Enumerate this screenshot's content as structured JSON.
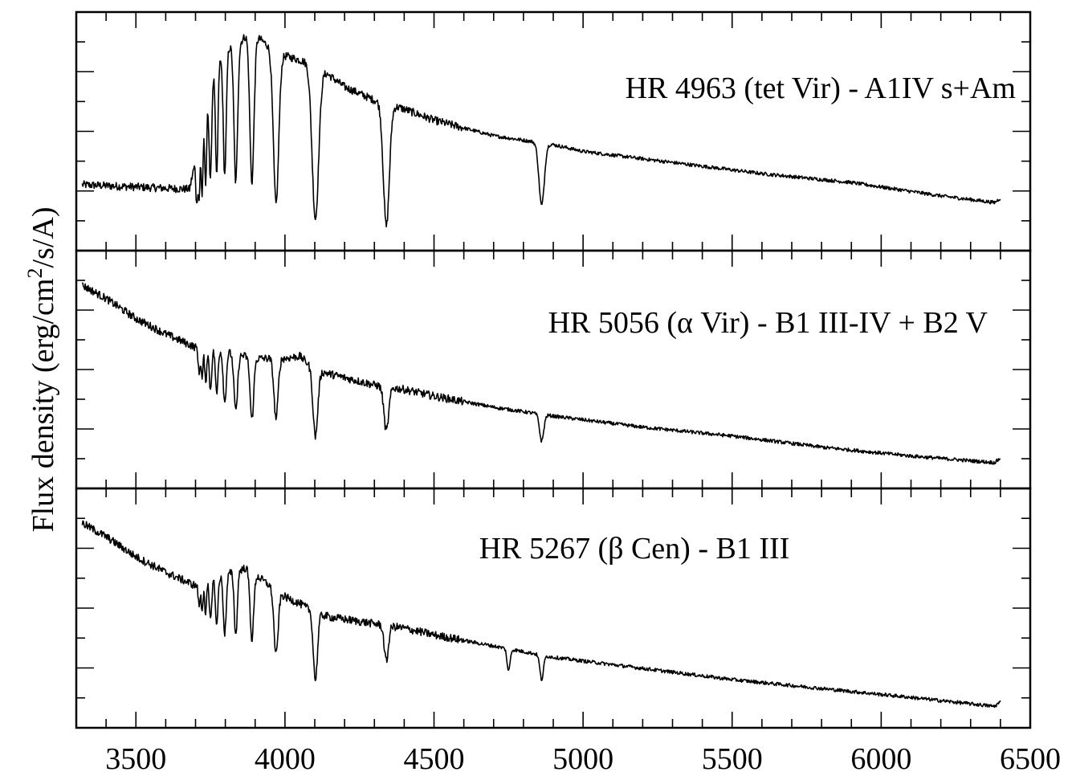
{
  "chart_data": {
    "type": "line",
    "xlabel": "",
    "ylabel": "Flux density (erg/cm² /s/A)",
    "ylabel_parts": {
      "pre": "Flux density (erg/cm",
      "sup": "2",
      "post": "/s/A)"
    },
    "xlim": [
      3300,
      6500
    ],
    "x_ticks": [
      3500,
      4000,
      4500,
      5000,
      5500,
      6000,
      6500
    ],
    "x_tick_labels": [
      "3500",
      "4000",
      "4500",
      "5000",
      "5500",
      "6000",
      "6500"
    ],
    "grid": false,
    "panels": [
      {
        "label": "HR 4963 (tet Vir) - A1IV s+Am",
        "ylim": [
          0,
          1
        ],
        "continuum": [
          [
            3320,
            0.26
          ],
          [
            3500,
            0.25
          ],
          [
            3680,
            0.24
          ],
          [
            3700,
            0.37
          ],
          [
            3760,
            0.76
          ],
          [
            3800,
            0.87
          ],
          [
            3850,
            0.9
          ],
          [
            3880,
            0.95
          ],
          [
            3950,
            0.88
          ],
          [
            4000,
            0.84
          ],
          [
            4050,
            0.82
          ],
          [
            4100,
            0.8
          ],
          [
            4200,
            0.7
          ],
          [
            4300,
            0.64
          ],
          [
            4400,
            0.6
          ],
          [
            4500,
            0.55
          ],
          [
            4700,
            0.48
          ],
          [
            4900,
            0.44
          ],
          [
            5000,
            0.41
          ],
          [
            5300,
            0.36
          ],
          [
            5600,
            0.31
          ],
          [
            5900,
            0.27
          ],
          [
            6200,
            0.21
          ],
          [
            6380,
            0.18
          ],
          [
            6400,
            0.2
          ]
        ],
        "absorption_lines": [
          {
            "x": 3704,
            "depth": 0.22,
            "width": 3
          },
          {
            "x": 3712,
            "depth": 0.25,
            "width": 3
          },
          {
            "x": 3722,
            "depth": 0.3,
            "width": 3
          },
          {
            "x": 3734,
            "depth": 0.35,
            "width": 3
          },
          {
            "x": 3750,
            "depth": 0.42,
            "width": 4
          },
          {
            "x": 3771,
            "depth": 0.5,
            "width": 4
          },
          {
            "x": 3798,
            "depth": 0.56,
            "width": 5
          },
          {
            "x": 3835,
            "depth": 0.62,
            "width": 6
          },
          {
            "x": 3889,
            "depth": 0.67,
            "width": 7
          },
          {
            "x": 3970,
            "depth": 0.69,
            "width": 9
          },
          {
            "x": 4102,
            "depth": 0.69,
            "width": 11
          },
          {
            "x": 4340,
            "depth": 0.55,
            "width": 10
          },
          {
            "x": 4861,
            "depth": 0.28,
            "width": 9
          }
        ]
      },
      {
        "label": "HR 5056 (α Vir) - B1 III-IV + B2 V",
        "ylim": [
          0,
          1
        ],
        "continuum": [
          [
            3320,
            0.88
          ],
          [
            3400,
            0.82
          ],
          [
            3500,
            0.73
          ],
          [
            3600,
            0.66
          ],
          [
            3700,
            0.6
          ],
          [
            3800,
            0.58
          ],
          [
            3900,
            0.55
          ],
          [
            4000,
            0.55
          ],
          [
            4050,
            0.56
          ],
          [
            4100,
            0.5
          ],
          [
            4150,
            0.48
          ],
          [
            4300,
            0.43
          ],
          [
            4400,
            0.41
          ],
          [
            4500,
            0.38
          ],
          [
            4700,
            0.33
          ],
          [
            4900,
            0.29
          ],
          [
            5200,
            0.24
          ],
          [
            5500,
            0.2
          ],
          [
            5800,
            0.15
          ],
          [
            6100,
            0.11
          ],
          [
            6380,
            0.08
          ],
          [
            6400,
            0.1
          ]
        ],
        "absorption_lines": [
          {
            "x": 3712,
            "depth": 0.12,
            "width": 3
          },
          {
            "x": 3722,
            "depth": 0.14,
            "width": 3
          },
          {
            "x": 3734,
            "depth": 0.16,
            "width": 3
          },
          {
            "x": 3750,
            "depth": 0.18,
            "width": 4
          },
          {
            "x": 3771,
            "depth": 0.2,
            "width": 4
          },
          {
            "x": 3798,
            "depth": 0.23,
            "width": 5
          },
          {
            "x": 3835,
            "depth": 0.26,
            "width": 6
          },
          {
            "x": 3889,
            "depth": 0.28,
            "width": 6
          },
          {
            "x": 3970,
            "depth": 0.27,
            "width": 7
          },
          {
            "x": 4102,
            "depth": 0.3,
            "width": 8
          },
          {
            "x": 4340,
            "depth": 0.2,
            "width": 8
          },
          {
            "x": 4861,
            "depth": 0.12,
            "width": 7
          }
        ]
      },
      {
        "label": "HR 5267 (β Cen) - B1 III",
        "ylim": [
          0,
          1
        ],
        "continuum": [
          [
            3320,
            0.88
          ],
          [
            3400,
            0.82
          ],
          [
            3500,
            0.73
          ],
          [
            3600,
            0.66
          ],
          [
            3700,
            0.6
          ],
          [
            3800,
            0.65
          ],
          [
            3870,
            0.68
          ],
          [
            3950,
            0.6
          ],
          [
            4000,
            0.55
          ],
          [
            4050,
            0.52
          ],
          [
            4100,
            0.48
          ],
          [
            4150,
            0.46
          ],
          [
            4300,
            0.43
          ],
          [
            4400,
            0.41
          ],
          [
            4500,
            0.38
          ],
          [
            4700,
            0.33
          ],
          [
            4900,
            0.28
          ],
          [
            5200,
            0.23
          ],
          [
            5500,
            0.18
          ],
          [
            5800,
            0.14
          ],
          [
            6100,
            0.1
          ],
          [
            6380,
            0.06
          ],
          [
            6400,
            0.08
          ]
        ],
        "absorption_lines": [
          {
            "x": 3712,
            "depth": 0.1,
            "width": 3
          },
          {
            "x": 3722,
            "depth": 0.12,
            "width": 3
          },
          {
            "x": 3734,
            "depth": 0.15,
            "width": 3
          },
          {
            "x": 3750,
            "depth": 0.18,
            "width": 4
          },
          {
            "x": 3771,
            "depth": 0.22,
            "width": 4
          },
          {
            "x": 3798,
            "depth": 0.26,
            "width": 5
          },
          {
            "x": 3835,
            "depth": 0.29,
            "width": 5
          },
          {
            "x": 3889,
            "depth": 0.3,
            "width": 6
          },
          {
            "x": 3970,
            "depth": 0.29,
            "width": 7
          },
          {
            "x": 4102,
            "depth": 0.3,
            "width": 7
          },
          {
            "x": 4340,
            "depth": 0.16,
            "width": 7
          },
          {
            "x": 4750,
            "depth": 0.1,
            "width": 5
          },
          {
            "x": 4861,
            "depth": 0.11,
            "width": 6
          }
        ]
      }
    ]
  }
}
